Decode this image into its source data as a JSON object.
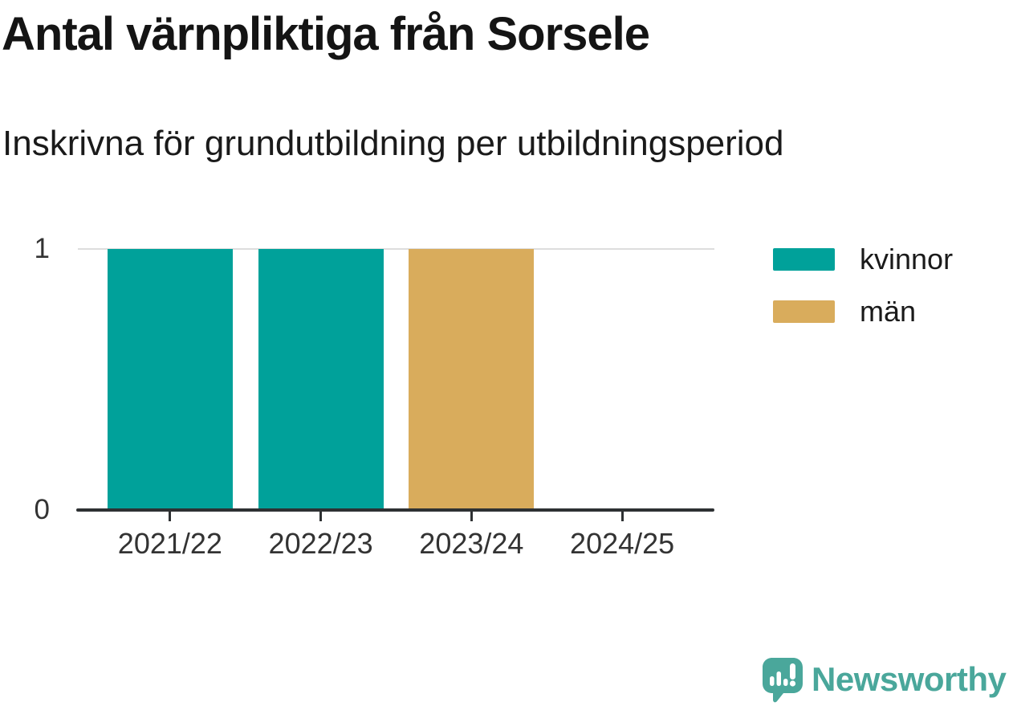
{
  "title": "Antal värnpliktiga från Sorsele",
  "subtitle": "Inskrivna för grundutbildning per utbildningsperiod",
  "chart_data": {
    "type": "bar",
    "stacked": true,
    "categories": [
      "2021/22",
      "2022/23",
      "2023/24",
      "2024/25"
    ],
    "series": [
      {
        "name": "kvinnor",
        "color": "#00A19A",
        "values": [
          1,
          1,
          0,
          0
        ]
      },
      {
        "name": "män",
        "color": "#D9AC5C",
        "values": [
          0,
          0,
          1,
          0
        ]
      }
    ],
    "ylim": [
      0,
      1
    ],
    "ytick_labels": [
      "0",
      "1"
    ],
    "grid": "single horizontal gridline at y=1",
    "legend_position": "right"
  },
  "legend": {
    "items": [
      {
        "label": "kvinnor",
        "color": "#00A19A"
      },
      {
        "label": "män",
        "color": "#D9AC5C"
      }
    ]
  },
  "footer": {
    "brand": "Newsworthy",
    "logo_icon": "bar-chart-speech-bubble-icon"
  },
  "colors": {
    "bar_kvinnor": "#00A19A",
    "bar_man": "#D9AC5C",
    "axis": "#2E3133",
    "tick_label": "#333333",
    "gridline": "#DDDDDD",
    "text": "#1A1A1A",
    "brand": "#4AA79B",
    "background": "#FFFFFF"
  }
}
